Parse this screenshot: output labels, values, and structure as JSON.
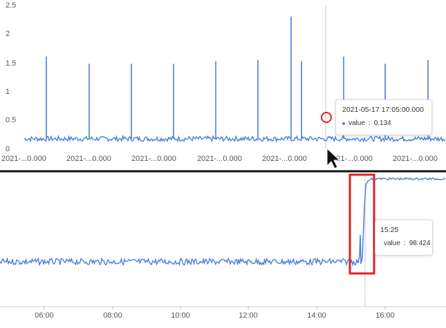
{
  "chart_data": [
    {
      "type": "line",
      "ylim": [
        0,
        2.5
      ],
      "yticks": [
        "0",
        "0.5",
        "1",
        "1.5",
        "2",
        "2.5"
      ],
      "xticks": [
        "2021-...0.000",
        "2021-...0.000",
        "2021-...0.000",
        "2021-...0.000",
        "2021-...0.000",
        "2021-...0.000",
        "2021-...0.000"
      ],
      "baseline": 0.1,
      "spikes": [
        1.58,
        1.45,
        1.45,
        1.45,
        1.5,
        1.52,
        2.3,
        1.5,
        1.58,
        1.45,
        1.52
      ],
      "tooltip": {
        "title": "2021-05-17 17:05:00.000",
        "series": "value",
        "value": "0.134"
      },
      "color": "#4a7fd9",
      "grid": false
    },
    {
      "type": "line",
      "xticks": [
        "06:00",
        "08:00",
        "10:00",
        "12:00",
        "14:00",
        "16:00"
      ],
      "low_level": 0.0,
      "high_level": 98.424,
      "step_time": "15:25",
      "tooltip": {
        "title": "15:25",
        "series": "value",
        "value": "98.424"
      },
      "color": "#4a7fd9",
      "grid": false
    }
  ],
  "colors": {
    "series": "#4a7fd9",
    "highlight": "#e02020",
    "divider": "#111111"
  }
}
